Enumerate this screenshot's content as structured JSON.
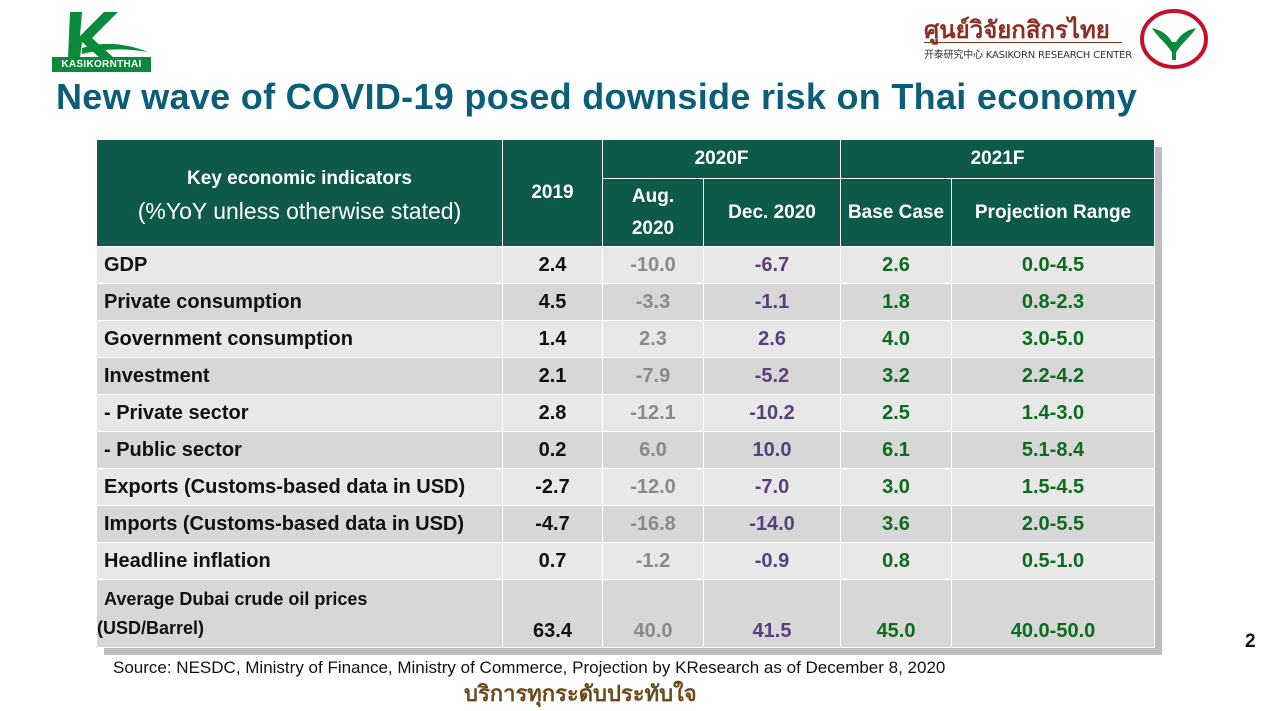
{
  "header": {
    "kbank_logo_text": "KASIKORNTHAI",
    "kresearch_thai": "ศูนย์วิจัยกสิกรไทย",
    "kresearch_sub": "开泰研究中心 KASIKORN RESEARCH CENTER",
    "title": "New wave of COVID-19 posed downside risk on Thai economy"
  },
  "colors": {
    "title": "#0b5d78",
    "header_fill": "#0d5a4b",
    "aug_2020": "#8a8a8a",
    "dec_2020": "#5b3f7c",
    "forecast_2021": "#0b6b1e"
  },
  "table": {
    "head": {
      "indicator_label": "Key economic indicators",
      "indicator_sub": "(%YoY unless otherwise stated)",
      "col_2019": "2019",
      "group_2020": "2020F",
      "group_2021": "2021F",
      "aug_line1": "Aug.",
      "aug_line2": "2020",
      "dec": "Dec. 2020",
      "base": "Base Case",
      "range": "Projection Range"
    },
    "rows": [
      {
        "label": "GDP",
        "y2019": "2.4",
        "aug": "-10.0",
        "dec": "-6.7",
        "base": "2.6",
        "range": "0.0-4.5"
      },
      {
        "label": "Private consumption",
        "y2019": "4.5",
        "aug": "-3.3",
        "dec": "-1.1",
        "base": "1.8",
        "range": "0.8-2.3"
      },
      {
        "label": "Government consumption",
        "y2019": "1.4",
        "aug": "2.3",
        "dec": "2.6",
        "base": "4.0",
        "range": "3.0-5.0"
      },
      {
        "label": "Investment",
        "y2019": "2.1",
        "aug": "-7.9",
        "dec": "-5.2",
        "base": "3.2",
        "range": "2.2-4.2"
      },
      {
        "label": " - Private sector",
        "y2019": "2.8",
        "aug": "-12.1",
        "dec": "-10.2",
        "base": "2.5",
        "range": "1.4-3.0"
      },
      {
        "label": " - Public sector",
        "y2019": "0.2",
        "aug": "6.0",
        "dec": "10.0",
        "base": "6.1",
        "range": "5.1-8.4"
      },
      {
        "label": "Exports (Customs-based data in USD)",
        "y2019": "-2.7",
        "aug": "-12.0",
        "dec": "-7.0",
        "base": "3.0",
        "range": "1.5-4.5"
      },
      {
        "label": "Imports (Customs-based data in USD)",
        "y2019": "-4.7",
        "aug": "-16.8",
        "dec": "-14.0",
        "base": "3.6",
        "range": "2.0-5.5"
      },
      {
        "label": "Headline inflation",
        "y2019": "0.7",
        "aug": "-1.2",
        "dec": "-0.9",
        "base": "0.8",
        "range": "0.5-1.0"
      }
    ],
    "last_row": {
      "label_line1": "Average Dubai crude oil prices",
      "label_line2": "(USD/Barrel)",
      "y2019": "63.4",
      "aug": "40.0",
      "dec": "41.5",
      "base": "45.0",
      "range": "40.0-50.0"
    }
  },
  "footer": {
    "source": "Source: NESDC, Ministry of Finance, Ministry of Commerce, Projection by KResearch as of December 8, 2020",
    "slogan": "บริการทุกระดับประทับใจ",
    "page_number": "2"
  }
}
